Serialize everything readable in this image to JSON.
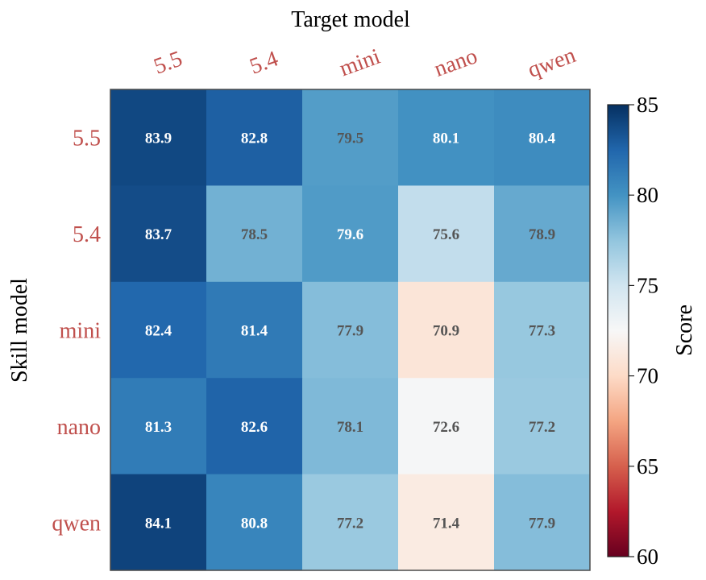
{
  "chart_data": {
    "type": "heatmap",
    "xlabel": "Target model",
    "ylabel": "Skill model",
    "x_categories": [
      "5.5",
      "5.4",
      "mini",
      "nano",
      "qwen"
    ],
    "y_categories": [
      "5.5",
      "5.4",
      "mini",
      "nano",
      "qwen"
    ],
    "values": [
      [
        83.9,
        82.8,
        79.5,
        80.1,
        80.4
      ],
      [
        83.7,
        78.5,
        79.6,
        75.6,
        78.9
      ],
      [
        82.4,
        81.4,
        77.9,
        70.9,
        77.3
      ],
      [
        81.3,
        82.6,
        78.1,
        72.6,
        77.2
      ],
      [
        84.1,
        80.8,
        77.2,
        71.4,
        77.9
      ]
    ],
    "colorbar": {
      "label": "Score",
      "range": [
        60,
        85
      ],
      "ticks": [
        60,
        65,
        70,
        75,
        80,
        85
      ],
      "colormap": "RdBu"
    },
    "colors": {
      "category_label": "#c0504d",
      "text_light": "#ffffff",
      "text_dark": "#555555"
    }
  }
}
